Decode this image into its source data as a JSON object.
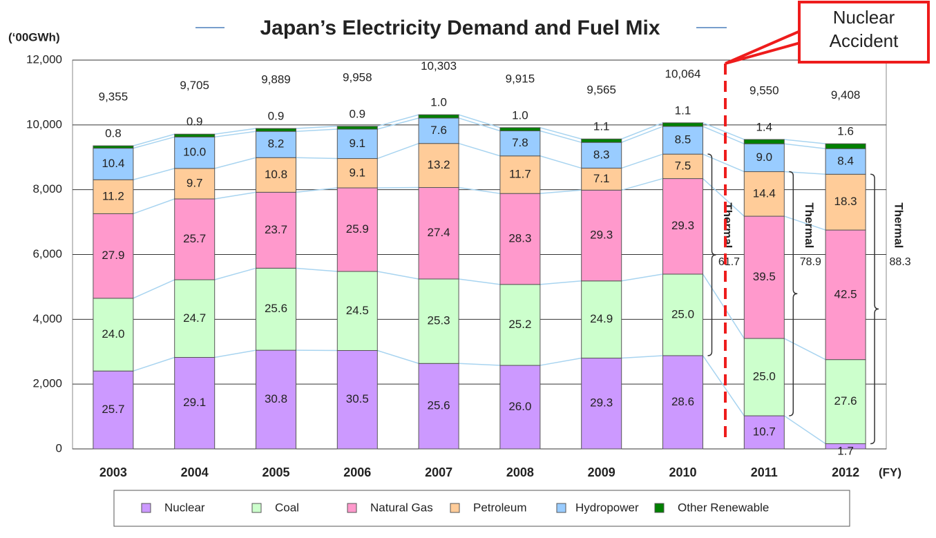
{
  "chart_data": {
    "type": "stacked-bar",
    "title": "Japan’s Electricity Demand and Fuel Mix",
    "y_label": "(‘00GWh)",
    "x_label": "(FY)",
    "callout": "Nuclear Accident",
    "categories": [
      "2003",
      "2004",
      "2005",
      "2006",
      "2007",
      "2008",
      "2009",
      "2010",
      "2011",
      "2012"
    ],
    "totals": {
      "values": [
        9355,
        9705,
        9889,
        9958,
        10303,
        9915,
        9565,
        10064,
        9550,
        9408
      ],
      "value_labels": [
        "9,355",
        "9,705",
        "9,889",
        "9,958",
        "10,303",
        "9,915",
        "9,565",
        "10,064",
        "9,550",
        "9,408"
      ]
    },
    "series": [
      {
        "name": "Nuclear",
        "color": "#cc99ff",
        "values": [
          25.7,
          29.1,
          30.8,
          30.5,
          25.6,
          26.0,
          29.3,
          28.6,
          10.7,
          1.7
        ],
        "value_labels": [
          "25.7",
          "29.1",
          "30.8",
          "30.5",
          "25.6",
          "26.0",
          "29.3",
          "28.6",
          "10.7",
          "1.7"
        ]
      },
      {
        "name": "Coal",
        "color": "#ccffcc",
        "values": [
          24.0,
          24.7,
          25.6,
          24.5,
          25.3,
          25.2,
          24.9,
          25.0,
          25.0,
          27.6
        ],
        "value_labels": [
          "24.0",
          "24.7",
          "25.6",
          "24.5",
          "25.3",
          "25.2",
          "24.9",
          "25.0",
          "25.0",
          "27.6"
        ]
      },
      {
        "name": "Natural Gas",
        "color": "#ff99cc",
        "values": [
          27.9,
          25.7,
          23.7,
          25.9,
          27.4,
          28.3,
          29.3,
          29.3,
          39.5,
          42.5
        ],
        "value_labels": [
          "27.9",
          "25.7",
          "23.7",
          "25.9",
          "27.4",
          "28.3",
          "29.3",
          "29.3",
          "39.5",
          "42.5"
        ]
      },
      {
        "name": "Petroleum",
        "color": "#ffcc99",
        "values": [
          11.2,
          9.7,
          10.8,
          9.1,
          13.2,
          11.7,
          7.1,
          7.5,
          14.4,
          18.3
        ],
        "value_labels": [
          "11.2",
          "9.7",
          "10.8",
          "9.1",
          "13.2",
          "11.7",
          "7.1",
          "7.5",
          "14.4",
          "18.3"
        ]
      },
      {
        "name": "Hydropower",
        "color": "#99ccff",
        "values": [
          10.4,
          10.0,
          8.2,
          9.1,
          7.6,
          7.8,
          8.3,
          8.5,
          9.0,
          8.4
        ],
        "value_labels": [
          "10.4",
          "10.0",
          "8.2",
          "9.1",
          "7.6",
          "7.8",
          "8.3",
          "8.5",
          "9.0",
          "8.4"
        ]
      },
      {
        "name": "Other Renewable",
        "color": "#008000",
        "values": [
          0.8,
          0.9,
          0.9,
          0.9,
          1.0,
          1.0,
          1.1,
          1.1,
          1.4,
          1.6
        ],
        "value_labels": [
          "0.8",
          "0.9",
          "0.9",
          "0.9",
          "1.0",
          "1.0",
          "1.1",
          "1.1",
          "1.4",
          "1.6"
        ]
      }
    ],
    "annotations": [
      {
        "text": "Thermal",
        "value": 61.7
      },
      {
        "text": "Thermal",
        "value": 78.9
      },
      {
        "text": "Thermal",
        "value": 88.3
      }
    ],
    "ylim": [
      0,
      12000
    ],
    "yticks": [
      0,
      {
        "value": 2000,
        "label": "2,000"
      },
      {
        "value": 4000,
        "label": "4,000"
      },
      {
        "value": 6000,
        "label": "6,000"
      },
      {
        "value": 8000,
        "label": "8,000"
      },
      {
        "value": 10000,
        "label": "10,000"
      },
      {
        "value": 12000,
        "label": "12,000"
      }
    ],
    "grid": true
  }
}
